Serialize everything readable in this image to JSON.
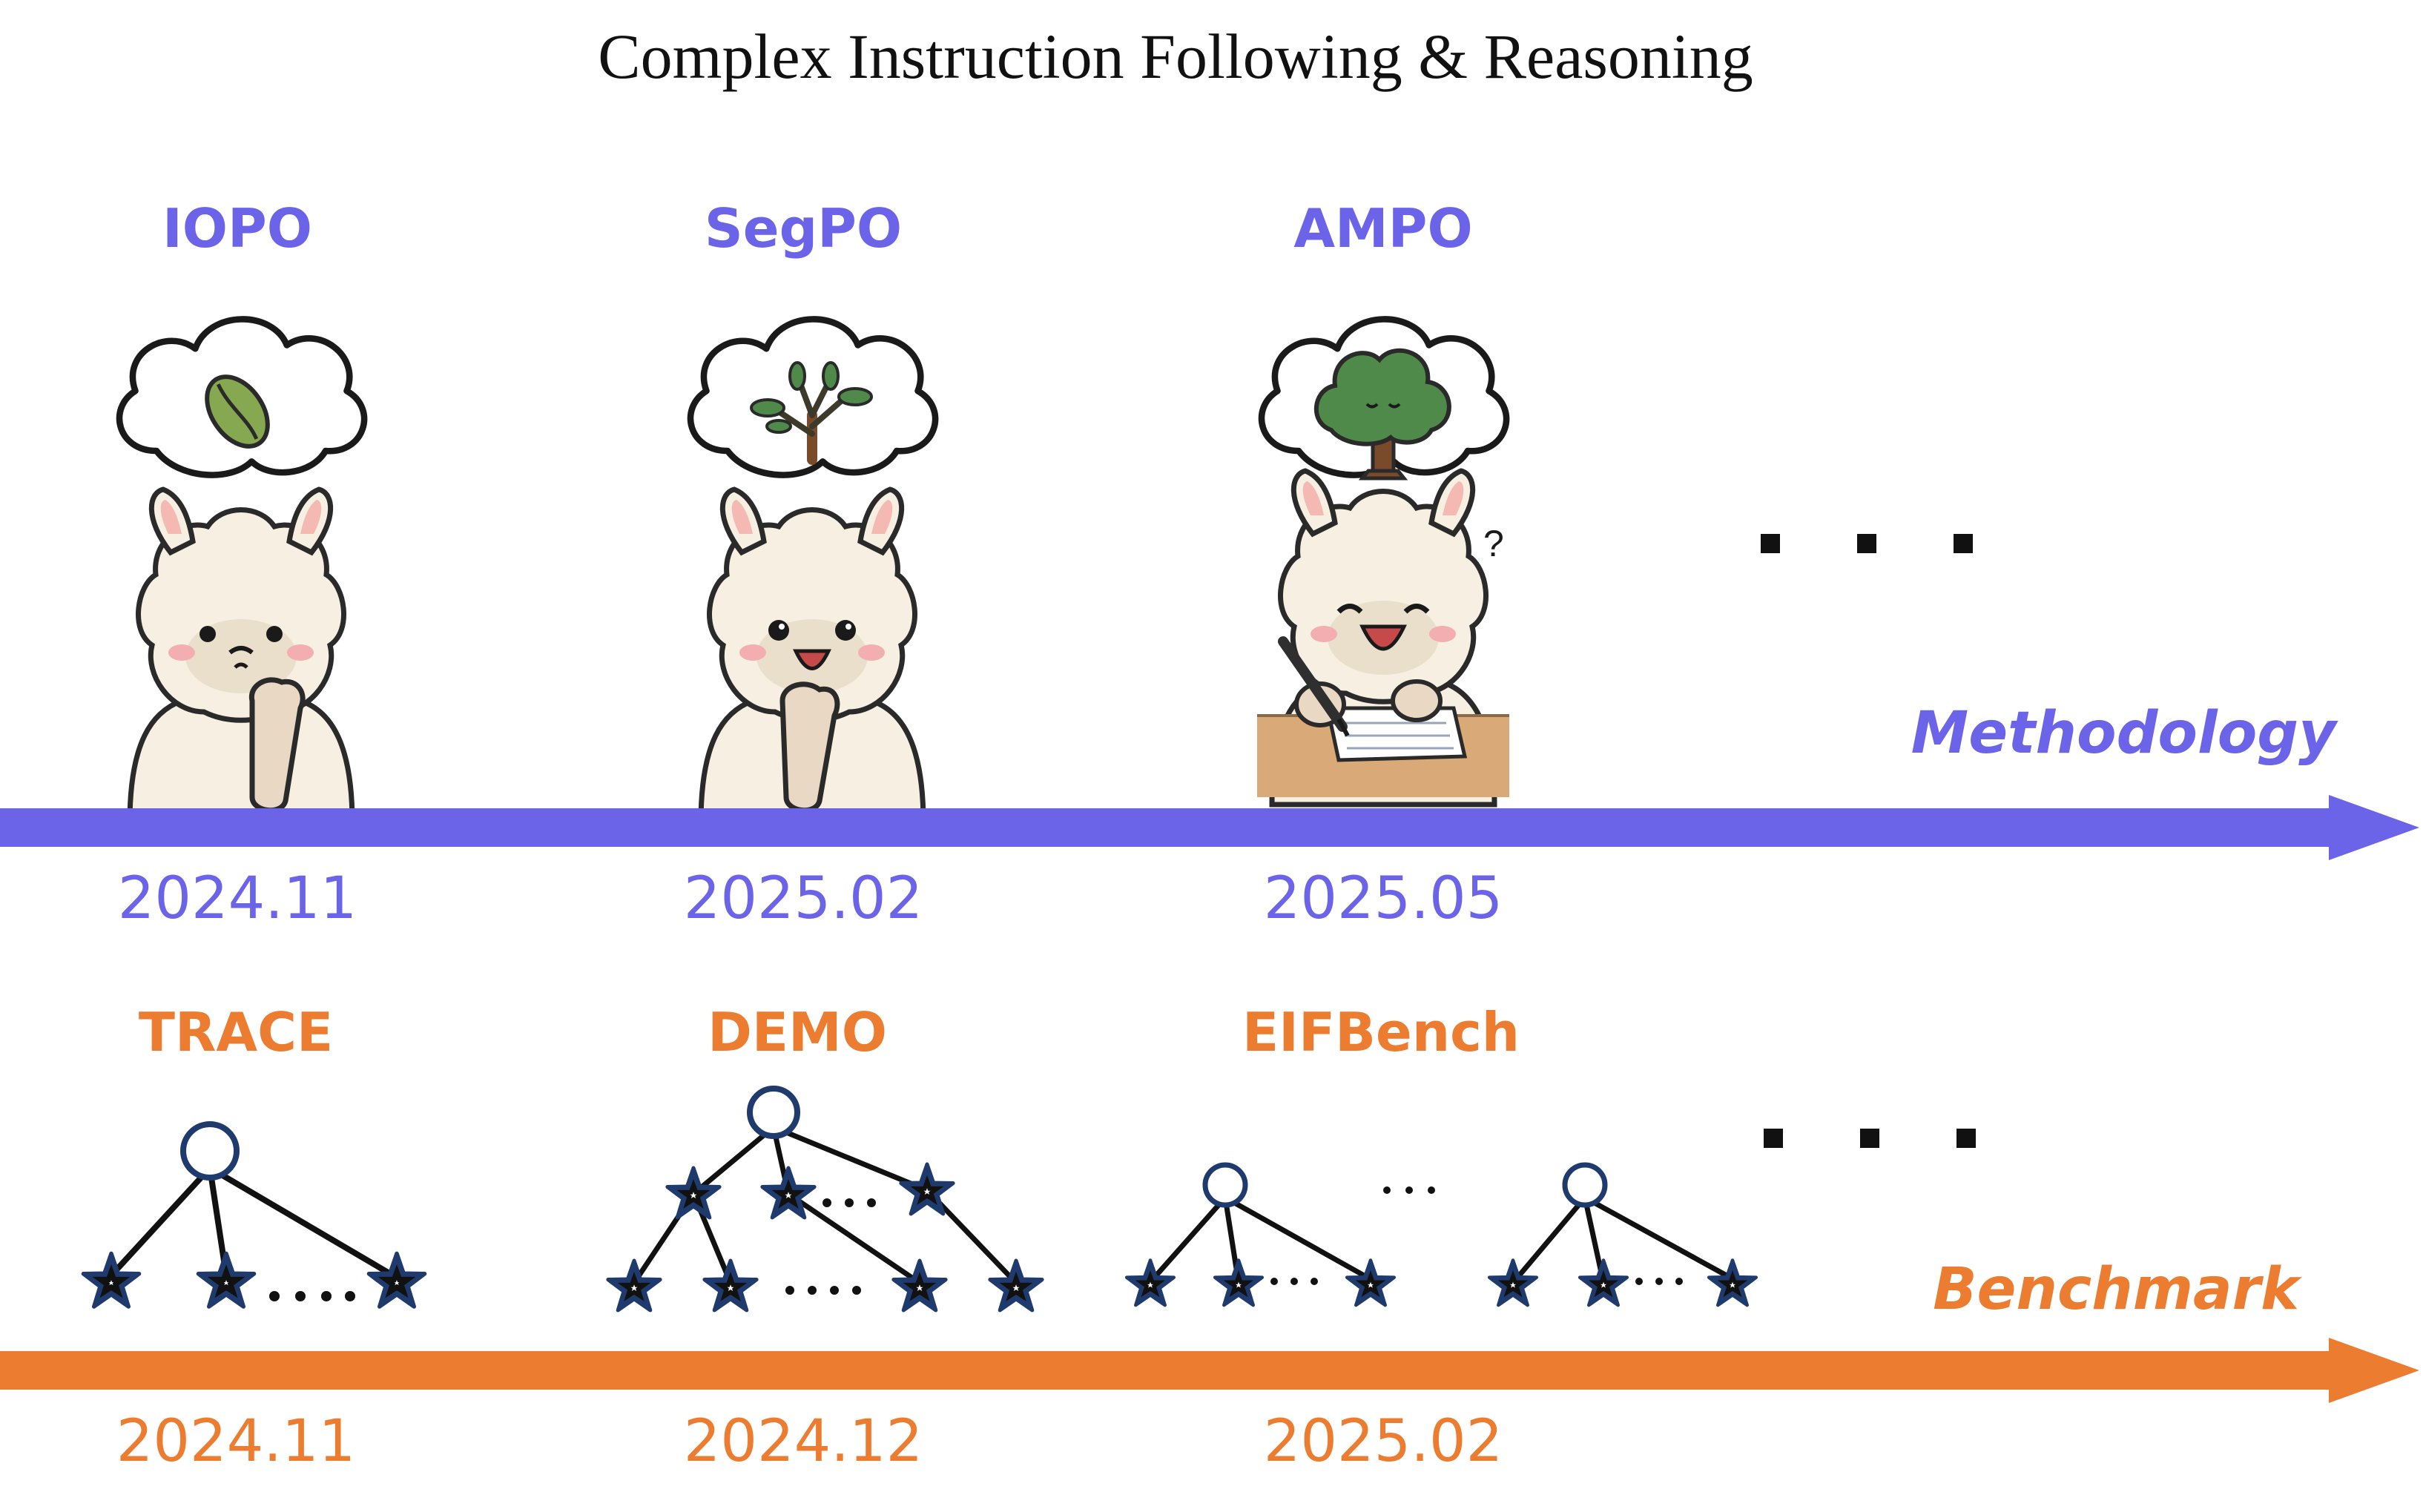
{
  "title": "Complex Instruction Following & Reasoning",
  "colors": {
    "methodology": "#6b64e8",
    "benchmark": "#ec7c30",
    "alpaca_fur": "#f6efe2",
    "leaf": "#86a850",
    "tree": "#4f8a4a",
    "trunk": "#7a4b2a",
    "star": "#1f3a6d",
    "desk": "#d9a977"
  },
  "methodology": {
    "axis_label": "Methodology",
    "items": [
      {
        "name": "IOPO",
        "date": "2024.11",
        "icon": "thinking-alpaca-leaf"
      },
      {
        "name": "SegPO",
        "date": "2025.02",
        "icon": "smiling-alpaca-sprout"
      },
      {
        "name": "AMPO",
        "date": "2025.05",
        "icon": "writing-alpaca-tree"
      }
    ],
    "more": "■ ■ ■"
  },
  "benchmark": {
    "axis_label": "Benchmark",
    "items": [
      {
        "name": "TRACE",
        "date": "2024.11",
        "icon": "tree-one-level"
      },
      {
        "name": "DEMO",
        "date": "2024.12",
        "icon": "tree-two-levels"
      },
      {
        "name": "EIFBench",
        "date": "2025.02",
        "icon": "multi-tree-forest"
      }
    ],
    "more": "■ ■ ■"
  }
}
